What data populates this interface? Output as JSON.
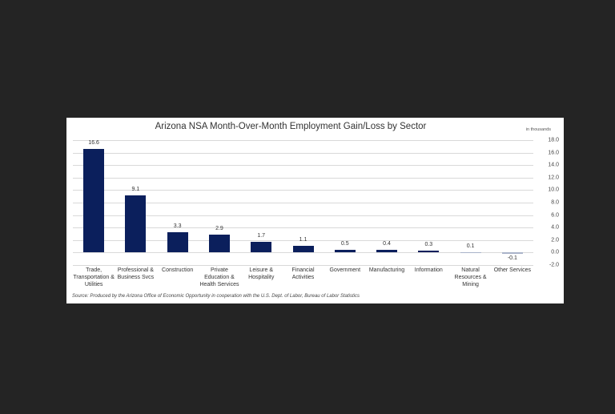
{
  "chart_data": {
    "type": "bar",
    "title": "Arizona NSA Month-Over-Month  Employment Gain/Loss by Sector",
    "units_note": "in thousands",
    "xlabel": "",
    "ylabel": "in thousands",
    "ylim": [
      -2.0,
      18.0
    ],
    "yticks": [
      "18.0",
      "16.0",
      "14.0",
      "12.0",
      "10.0",
      "8.0",
      "6.0",
      "4.0",
      "2.0",
      "0.0",
      "-2.0"
    ],
    "grid": true,
    "y_axis_position": "right",
    "legend": null,
    "categories": [
      "Trade,\nTransportation &\nUtilities",
      "Professional &\nBusiness Svcs",
      "Construction",
      "Private\nEducation &\nHealth Services",
      "Leisure &\nHospitality",
      "Financial\nActivities",
      "Government",
      "Manufacturing",
      "Information",
      "Natural\nResources &\nMining",
      "Other Services"
    ],
    "values": [
      16.6,
      9.1,
      3.3,
      2.9,
      1.7,
      1.1,
      0.5,
      0.4,
      0.3,
      0.1,
      -0.1
    ],
    "value_labels": [
      "16.6",
      "9.1",
      "3.3",
      "2.9",
      "1.7",
      "1.1",
      "0.5",
      "0.4",
      "0.3",
      "0.1",
      "-0.1"
    ],
    "bar_colors": [
      "#0b1f5c",
      "#0b1f5c",
      "#0b1f5c",
      "#0b1f5c",
      "#0b1f5c",
      "#0b1f5c",
      "#0b1f5c",
      "#0b1f5c",
      "#0b1f5c",
      "#a9b3c9",
      "#a9b3c9"
    ],
    "source": "Source: Produced by the Arizona Office of Economic Opportunity in cooperation with the U.S. Dept. of Labor, Bureau of Labor Statistics"
  },
  "colors": {
    "background": "#242424",
    "panel": "#ffffff",
    "bar": "#0b1f5c",
    "bar_small": "#a9b3c9",
    "grid": "#d9d9d9"
  }
}
